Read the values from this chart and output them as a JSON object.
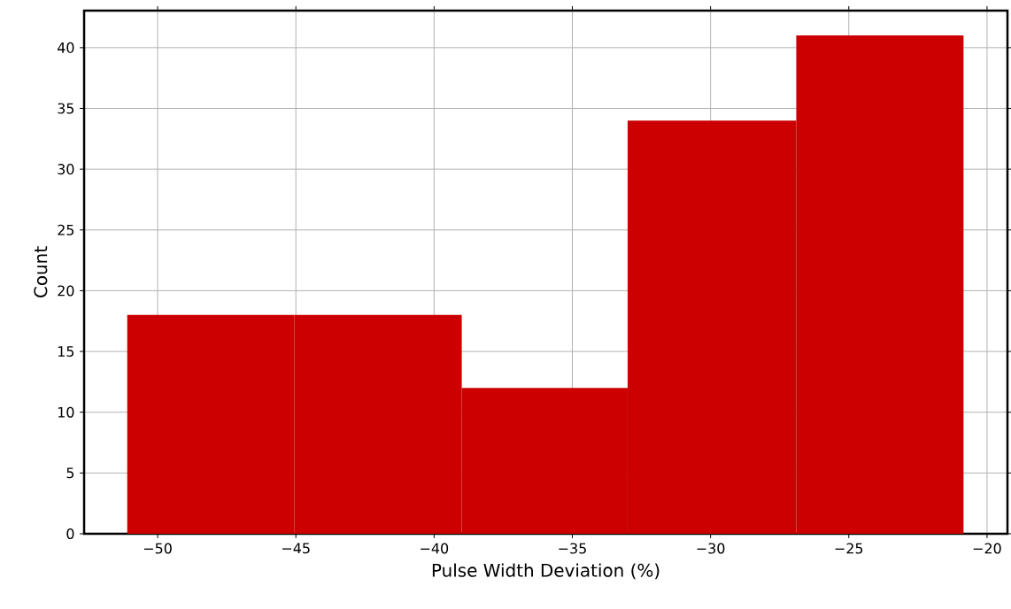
{
  "chart_data": {
    "type": "histogram",
    "xlabel": "Pulse Width Deviation (%)",
    "ylabel": "Count",
    "bins": [
      -51.1,
      -45.05,
      -39.0,
      -33.0,
      -26.9,
      -20.85
    ],
    "values": [
      18,
      18,
      12,
      34,
      41
    ],
    "color": "#cc0000",
    "xlim": [
      -52.66,
      -19.26
    ],
    "ylim": [
      0,
      43.05
    ],
    "xticks": [
      {
        "value": -50,
        "label": "−50"
      },
      {
        "value": -45,
        "label": "−45"
      },
      {
        "value": -40,
        "label": "−40"
      },
      {
        "value": -35,
        "label": "−35"
      },
      {
        "value": -30,
        "label": "−30"
      },
      {
        "value": -25,
        "label": "−25"
      },
      {
        "value": -20,
        "label": "−20"
      }
    ],
    "yticks": [
      0,
      5,
      10,
      15,
      20,
      25,
      30,
      35,
      40
    ],
    "grid": true
  }
}
